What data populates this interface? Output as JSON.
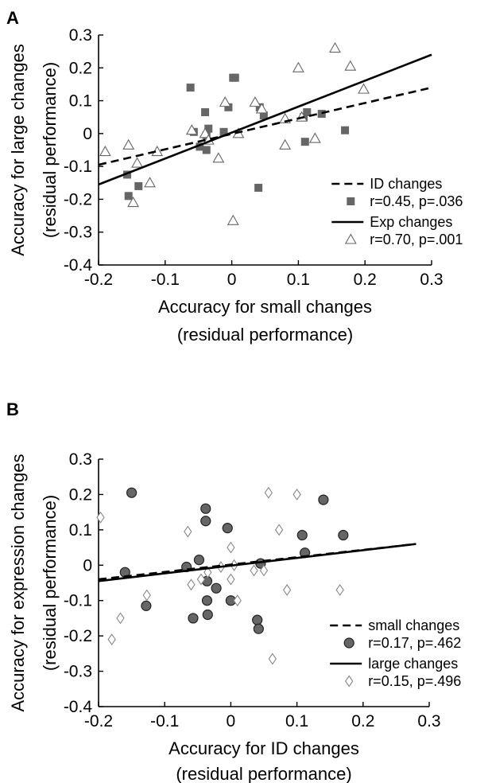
{
  "chart_data": [
    {
      "type": "scatter",
      "panel_label": "A",
      "xlabel_line1": "Accuracy for small changes",
      "xlabel_line2": "(residual performance)",
      "ylabel_line1": "Accuracy for large changes",
      "ylabel_line2": "(residual performance)",
      "xlim": [
        -0.2,
        0.3
      ],
      "ylim": [
        -0.4,
        0.3
      ],
      "xticks": [
        -0.2,
        -0.1,
        0,
        0.1,
        0.2,
        0.3
      ],
      "xtick_labels": [
        "-0.2",
        "-0.1",
        "0",
        "0.1",
        "0.2",
        "0.3"
      ],
      "yticks": [
        -0.4,
        -0.3,
        -0.2,
        -0.1,
        0,
        0.1,
        0.2,
        0.3
      ],
      "ytick_labels": [
        "-0.4",
        "-0.3",
        "-0.2",
        "-0.1",
        "0",
        "0.1",
        "0.2",
        "0.3"
      ],
      "legend_position": "bottom-right",
      "series": [
        {
          "name": "ID changes",
          "stats": "r=0.45, p=.036",
          "marker": "square",
          "line_style": "dashed",
          "color": "#666666",
          "x": [
            -0.157,
            -0.155,
            -0.14,
            -0.062,
            -0.057,
            -0.048,
            -0.04,
            -0.038,
            -0.038,
            -0.035,
            -0.012,
            -0.005,
            0.002,
            0.005,
            0.04,
            0.042,
            0.048,
            0.108,
            0.11,
            0.113,
            0.135,
            0.17
          ],
          "y": [
            -0.125,
            -0.19,
            -0.16,
            0.14,
            0.005,
            -0.04,
            0.065,
            -0.05,
            -0.005,
            0.015,
            0.005,
            0.08,
            0.17,
            0.17,
            -0.165,
            0.08,
            0.055,
            0.05,
            -0.025,
            0.065,
            0.06,
            0.01
          ],
          "trend": [
            [
              -0.2,
              -0.095
            ],
            [
              0.3,
              0.14
            ]
          ]
        },
        {
          "name": "Exp changes",
          "stats": "r=0.70, p=.001",
          "marker": "triangle-open",
          "line_style": "solid",
          "color": "#666666",
          "x": [
            -0.19,
            -0.155,
            -0.148,
            -0.142,
            -0.123,
            -0.112,
            -0.06,
            -0.04,
            -0.035,
            -0.02,
            -0.01,
            0.002,
            0.01,
            0.035,
            0.045,
            0.08,
            0.08,
            0.1,
            0.105,
            0.125,
            0.155,
            0.178,
            0.198
          ],
          "y": [
            -0.055,
            -0.035,
            -0.21,
            -0.09,
            -0.15,
            -0.055,
            0.01,
            0.0,
            -0.02,
            -0.075,
            0.095,
            -0.265,
            0.0,
            0.095,
            0.075,
            0.045,
            -0.035,
            0.2,
            0.05,
            -0.015,
            0.26,
            0.205,
            0.135
          ],
          "trend": [
            [
              -0.2,
              -0.155
            ],
            [
              0.3,
              0.24
            ]
          ]
        }
      ]
    },
    {
      "type": "scatter",
      "panel_label": "B",
      "xlabel_line1": "Accuracy for ID changes",
      "xlabel_line2": "(residual performance)",
      "ylabel_line1": "Accuracy for expression changes",
      "ylabel_line2": "(residual performance)",
      "xlim": [
        -0.2,
        0.3
      ],
      "ylim": [
        -0.4,
        0.3
      ],
      "xticks": [
        -0.2,
        -0.1,
        0,
        0.1,
        0.2,
        0.3
      ],
      "xtick_labels": [
        "-0.2",
        "-0.1",
        "0",
        "0.1",
        "0.2",
        "0.3"
      ],
      "yticks": [
        -0.4,
        -0.3,
        -0.2,
        -0.1,
        0,
        0.1,
        0.2,
        0.3
      ],
      "ytick_labels": [
        "-0.4",
        "-0.3",
        "-0.2",
        "-0.1",
        "0",
        "0.1",
        "0.2",
        "0.3"
      ],
      "legend_position": "bottom-right",
      "series": [
        {
          "name": "small changes",
          "stats": "r=0.17, p=.462",
          "marker": "circle-filled",
          "line_style": "dashed",
          "color": "#666666",
          "x": [
            -0.16,
            -0.128,
            -0.15,
            -0.067,
            -0.057,
            -0.048,
            -0.038,
            -0.038,
            -0.036,
            -0.036,
            -0.035,
            -0.022,
            -0.005,
            0.0,
            0.04,
            0.042,
            0.045,
            0.108,
            0.112,
            0.14,
            0.17
          ],
          "y": [
            -0.02,
            -0.115,
            0.205,
            -0.005,
            -0.15,
            0.015,
            0.16,
            0.125,
            -0.045,
            -0.1,
            -0.14,
            -0.065,
            0.105,
            -0.1,
            -0.155,
            -0.18,
            0.005,
            0.085,
            0.035,
            0.185,
            0.085
          ],
          "trend": [
            [
              -0.2,
              -0.04
            ],
            [
              0.28,
              0.06
            ]
          ]
        },
        {
          "name": "large changes",
          "stats": "r=0.15, p=.496",
          "marker": "diamond-open",
          "line_style": "solid",
          "color": "#888888",
          "x": [
            -0.197,
            -0.18,
            -0.167,
            -0.127,
            -0.065,
            -0.06,
            -0.045,
            -0.035,
            -0.015,
            0.0,
            0.0,
            0.005,
            0.01,
            0.035,
            0.05,
            0.057,
            0.063,
            0.073,
            0.085,
            0.1,
            0.165
          ],
          "y": [
            0.135,
            -0.21,
            -0.15,
            -0.085,
            0.095,
            -0.055,
            -0.04,
            -0.02,
            -0.005,
            0.05,
            -0.04,
            0.0,
            -0.1,
            -0.015,
            -0.015,
            0.205,
            -0.265,
            0.1,
            -0.07,
            0.2,
            -0.07
          ],
          "trend": [
            [
              -0.2,
              -0.045
            ],
            [
              0.28,
              0.06
            ]
          ]
        }
      ]
    }
  ]
}
